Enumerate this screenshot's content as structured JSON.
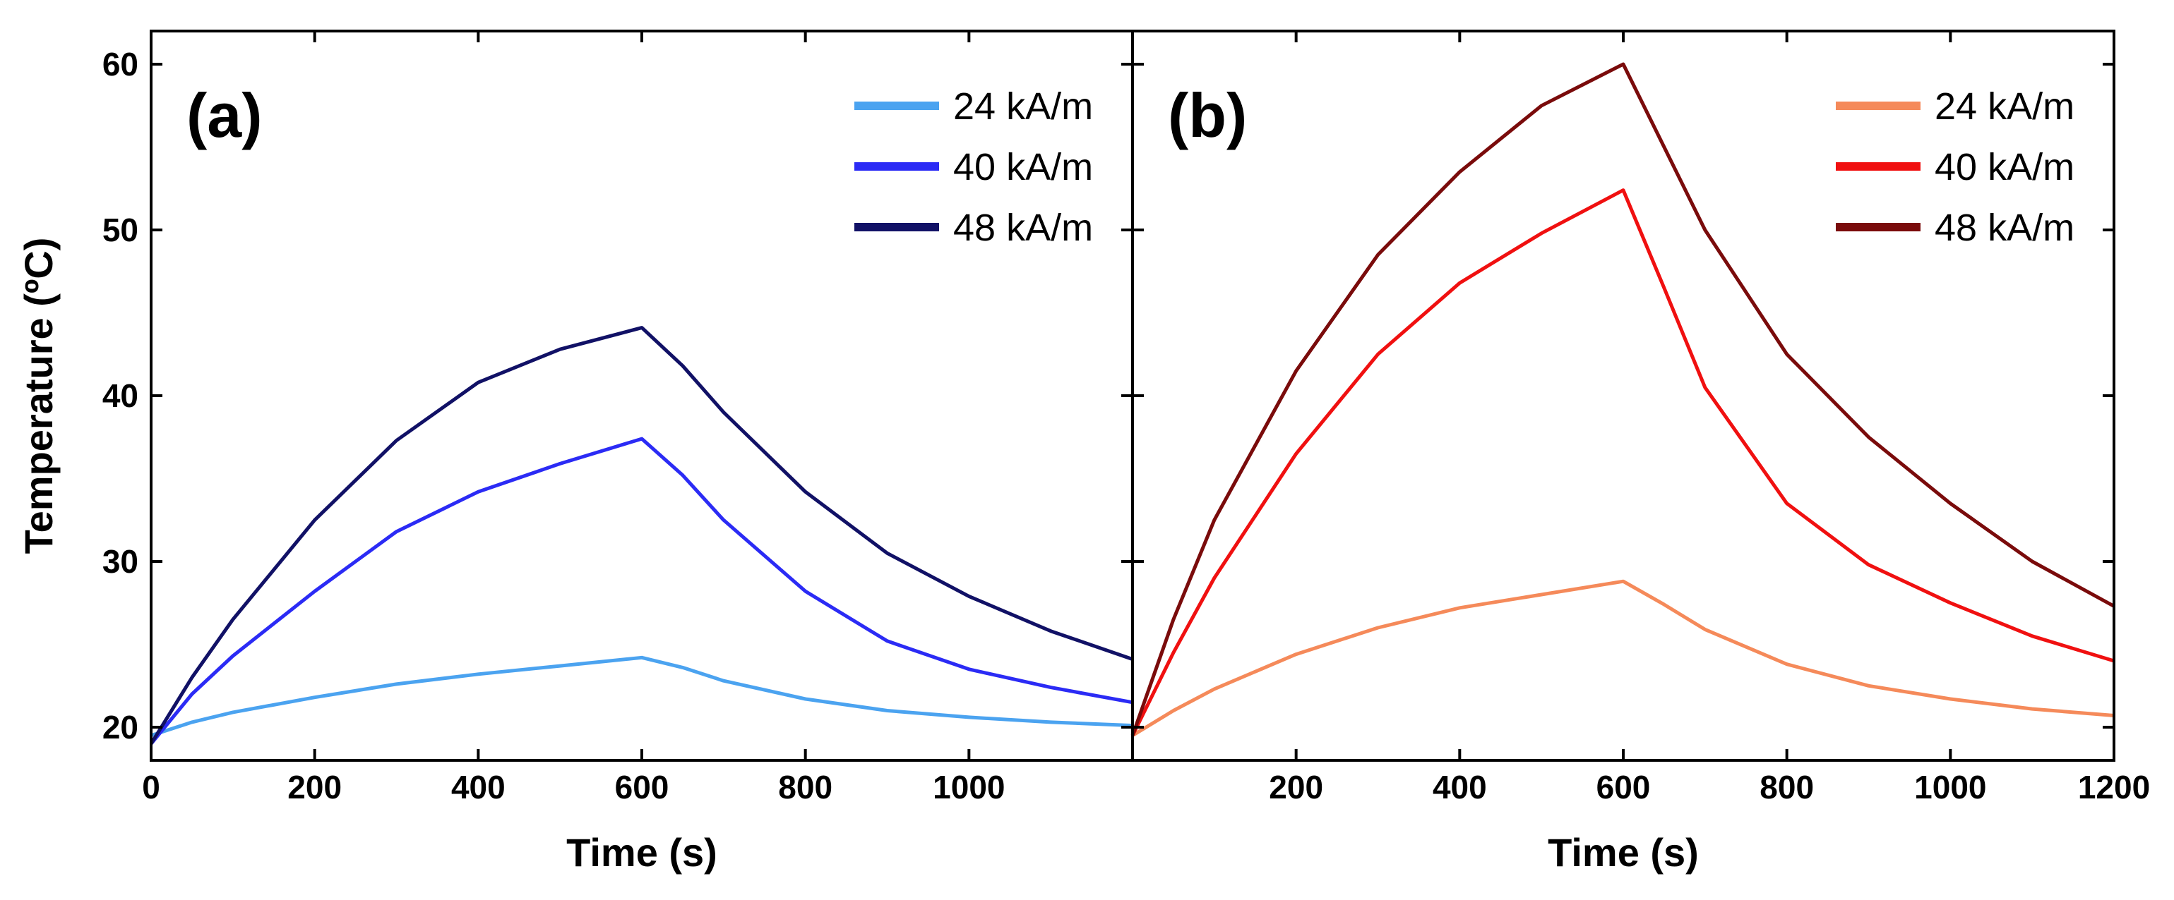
{
  "chart_data": [
    {
      "type": "line",
      "panel_label": "(a)",
      "xlabel": "Time (s)",
      "ylabel": "Temperature (ºC)",
      "xlim": [
        0,
        1200
      ],
      "ylim": [
        18,
        62
      ],
      "xticks": [
        0,
        200,
        400,
        600,
        800,
        1000
      ],
      "xtick_labels": [
        "0",
        "200",
        "400",
        "600",
        "800",
        "1000"
      ],
      "yticks": [
        20,
        30,
        40,
        50,
        60
      ],
      "ytick_labels": [
        "20",
        "30",
        "40",
        "50",
        "60"
      ],
      "grid": false,
      "legend_position": "top-right",
      "series": [
        {
          "name": "24 kA/m",
          "color": "#4ba3f0",
          "x": [
            0,
            50,
            100,
            200,
            300,
            400,
            500,
            600,
            650,
            700,
            800,
            900,
            1000,
            1100,
            1200
          ],
          "y": [
            19.5,
            20.3,
            20.9,
            21.8,
            22.6,
            23.2,
            23.7,
            24.2,
            23.6,
            22.8,
            21.7,
            21.0,
            20.6,
            20.3,
            20.1
          ]
        },
        {
          "name": "40 kA/m",
          "color": "#2b2bf5",
          "x": [
            0,
            50,
            100,
            200,
            300,
            400,
            500,
            600,
            650,
            700,
            800,
            900,
            1000,
            1100,
            1200
          ],
          "y": [
            19.0,
            22.0,
            24.3,
            28.2,
            31.8,
            34.2,
            35.9,
            37.4,
            35.2,
            32.5,
            28.2,
            25.2,
            23.5,
            22.4,
            21.5
          ]
        },
        {
          "name": "48 kA/m",
          "color": "#111166",
          "x": [
            0,
            50,
            100,
            200,
            300,
            400,
            500,
            600,
            650,
            700,
            800,
            900,
            1000,
            1100,
            1200
          ],
          "y": [
            19.0,
            23.0,
            26.5,
            32.5,
            37.3,
            40.8,
            42.8,
            44.1,
            41.8,
            39.0,
            34.2,
            30.5,
            27.9,
            25.8,
            24.1
          ]
        }
      ]
    },
    {
      "type": "line",
      "panel_label": "(b)",
      "xlabel": "Time (s)",
      "ylabel": "",
      "xlim": [
        0,
        1200
      ],
      "ylim": [
        18,
        62
      ],
      "xticks": [
        200,
        400,
        600,
        800,
        1000,
        1200
      ],
      "xtick_labels": [
        "200",
        "400",
        "600",
        "800",
        "1000",
        "1200"
      ],
      "yticks": [
        20,
        30,
        40,
        50,
        60
      ],
      "ytick_labels": [],
      "grid": false,
      "legend_position": "top-right",
      "series": [
        {
          "name": "24 kA/m",
          "color": "#f58a5a",
          "x": [
            0,
            50,
            100,
            200,
            300,
            400,
            500,
            600,
            650,
            700,
            800,
            900,
            1000,
            1100,
            1200
          ],
          "y": [
            19.5,
            21.0,
            22.3,
            24.4,
            26.0,
            27.2,
            28.0,
            28.8,
            27.4,
            25.9,
            23.8,
            22.5,
            21.7,
            21.1,
            20.7
          ]
        },
        {
          "name": "40 kA/m",
          "color": "#f01010",
          "x": [
            0,
            50,
            100,
            200,
            300,
            400,
            500,
            600,
            650,
            700,
            800,
            900,
            1000,
            1100,
            1200
          ],
          "y": [
            19.5,
            24.5,
            29.0,
            36.5,
            42.5,
            46.8,
            49.8,
            52.4,
            46.5,
            40.5,
            33.5,
            29.8,
            27.5,
            25.5,
            24.0
          ]
        },
        {
          "name": "48 kA/m",
          "color": "#7a0b0b",
          "x": [
            0,
            50,
            100,
            200,
            300,
            400,
            500,
            600,
            650,
            700,
            800,
            900,
            1000,
            1100,
            1200
          ],
          "y": [
            19.5,
            26.5,
            32.5,
            41.5,
            48.5,
            53.5,
            57.5,
            60.0,
            55.0,
            50.0,
            42.5,
            37.5,
            33.5,
            30.0,
            27.3
          ]
        }
      ]
    }
  ]
}
